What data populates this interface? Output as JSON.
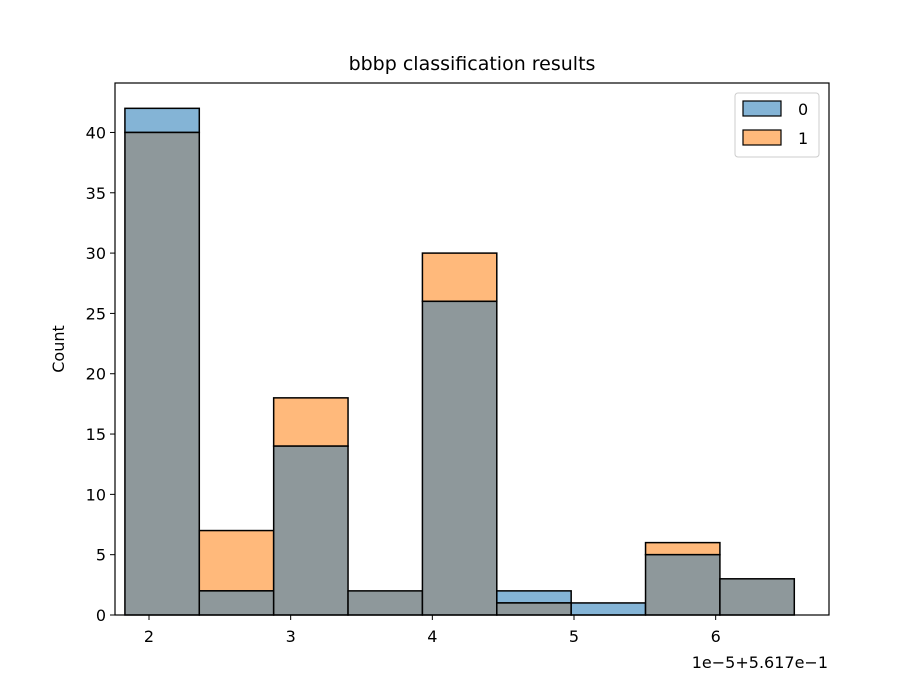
{
  "chart_data": {
    "type": "bar",
    "title": "bbbp classification results",
    "xlabel": "",
    "ylabel": "Count",
    "x_offset_label": "1e−5+5.617e−1",
    "xlim": [
      1.76,
      6.8
    ],
    "ylim": [
      0,
      44.1
    ],
    "xticks": [
      2,
      3,
      4,
      5,
      6
    ],
    "yticks": [
      0,
      5,
      10,
      15,
      20,
      25,
      30,
      35,
      40
    ],
    "bin_edges": [
      1.83,
      2.355,
      2.88,
      3.405,
      3.93,
      4.455,
      4.98,
      5.505,
      6.03,
      6.555
    ],
    "series": [
      {
        "name": "0",
        "color": "#1f77b4",
        "values": [
          42,
          2,
          14,
          2,
          26,
          2,
          1,
          5,
          3
        ]
      },
      {
        "name": "1",
        "color": "#ff7f0e",
        "values": [
          40,
          7,
          18,
          2,
          30,
          1,
          0,
          6,
          3
        ]
      }
    ],
    "overlap_color": "#8e989b",
    "legend_position": "top-right",
    "grid": false
  }
}
